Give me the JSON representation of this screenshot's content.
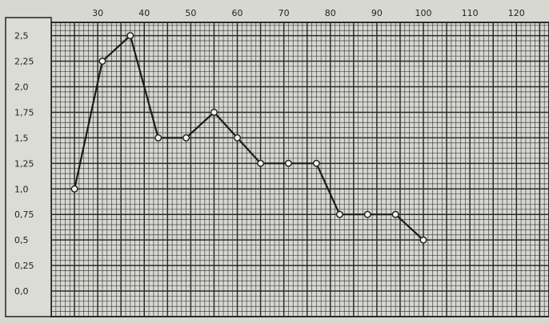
{
  "chart_data": {
    "type": "line",
    "title": "",
    "xlabel": "",
    "ylabel": "",
    "x_ticks": [
      "30",
      "40",
      "50",
      "60",
      "70",
      "80",
      "90",
      "100",
      "110",
      "120"
    ],
    "y_ticks": [
      "2,5",
      "2,25",
      "2,0",
      "1,75",
      "1,5",
      "1,25",
      "1,0",
      "0,75",
      "0,5",
      "0,25",
      "0,0"
    ],
    "xlim": [
      20,
      127
    ],
    "ylim": [
      -0.25,
      2.63
    ],
    "grid": true,
    "marker": "open-circle",
    "colors": {
      "paper": "#d8d8d3",
      "grid": "#2a2a2a",
      "line": "#1a1a1a",
      "marker_fill": "#efefe8"
    },
    "series": [
      {
        "name": "",
        "x": [
          25,
          31,
          37,
          43,
          49,
          55,
          60,
          65,
          71,
          77,
          82,
          88,
          94,
          100
        ],
        "y": [
          1.0,
          2.25,
          2.5,
          1.5,
          1.5,
          1.75,
          1.5,
          1.25,
          1.25,
          1.25,
          0.75,
          0.75,
          0.75,
          0.5
        ]
      }
    ]
  }
}
